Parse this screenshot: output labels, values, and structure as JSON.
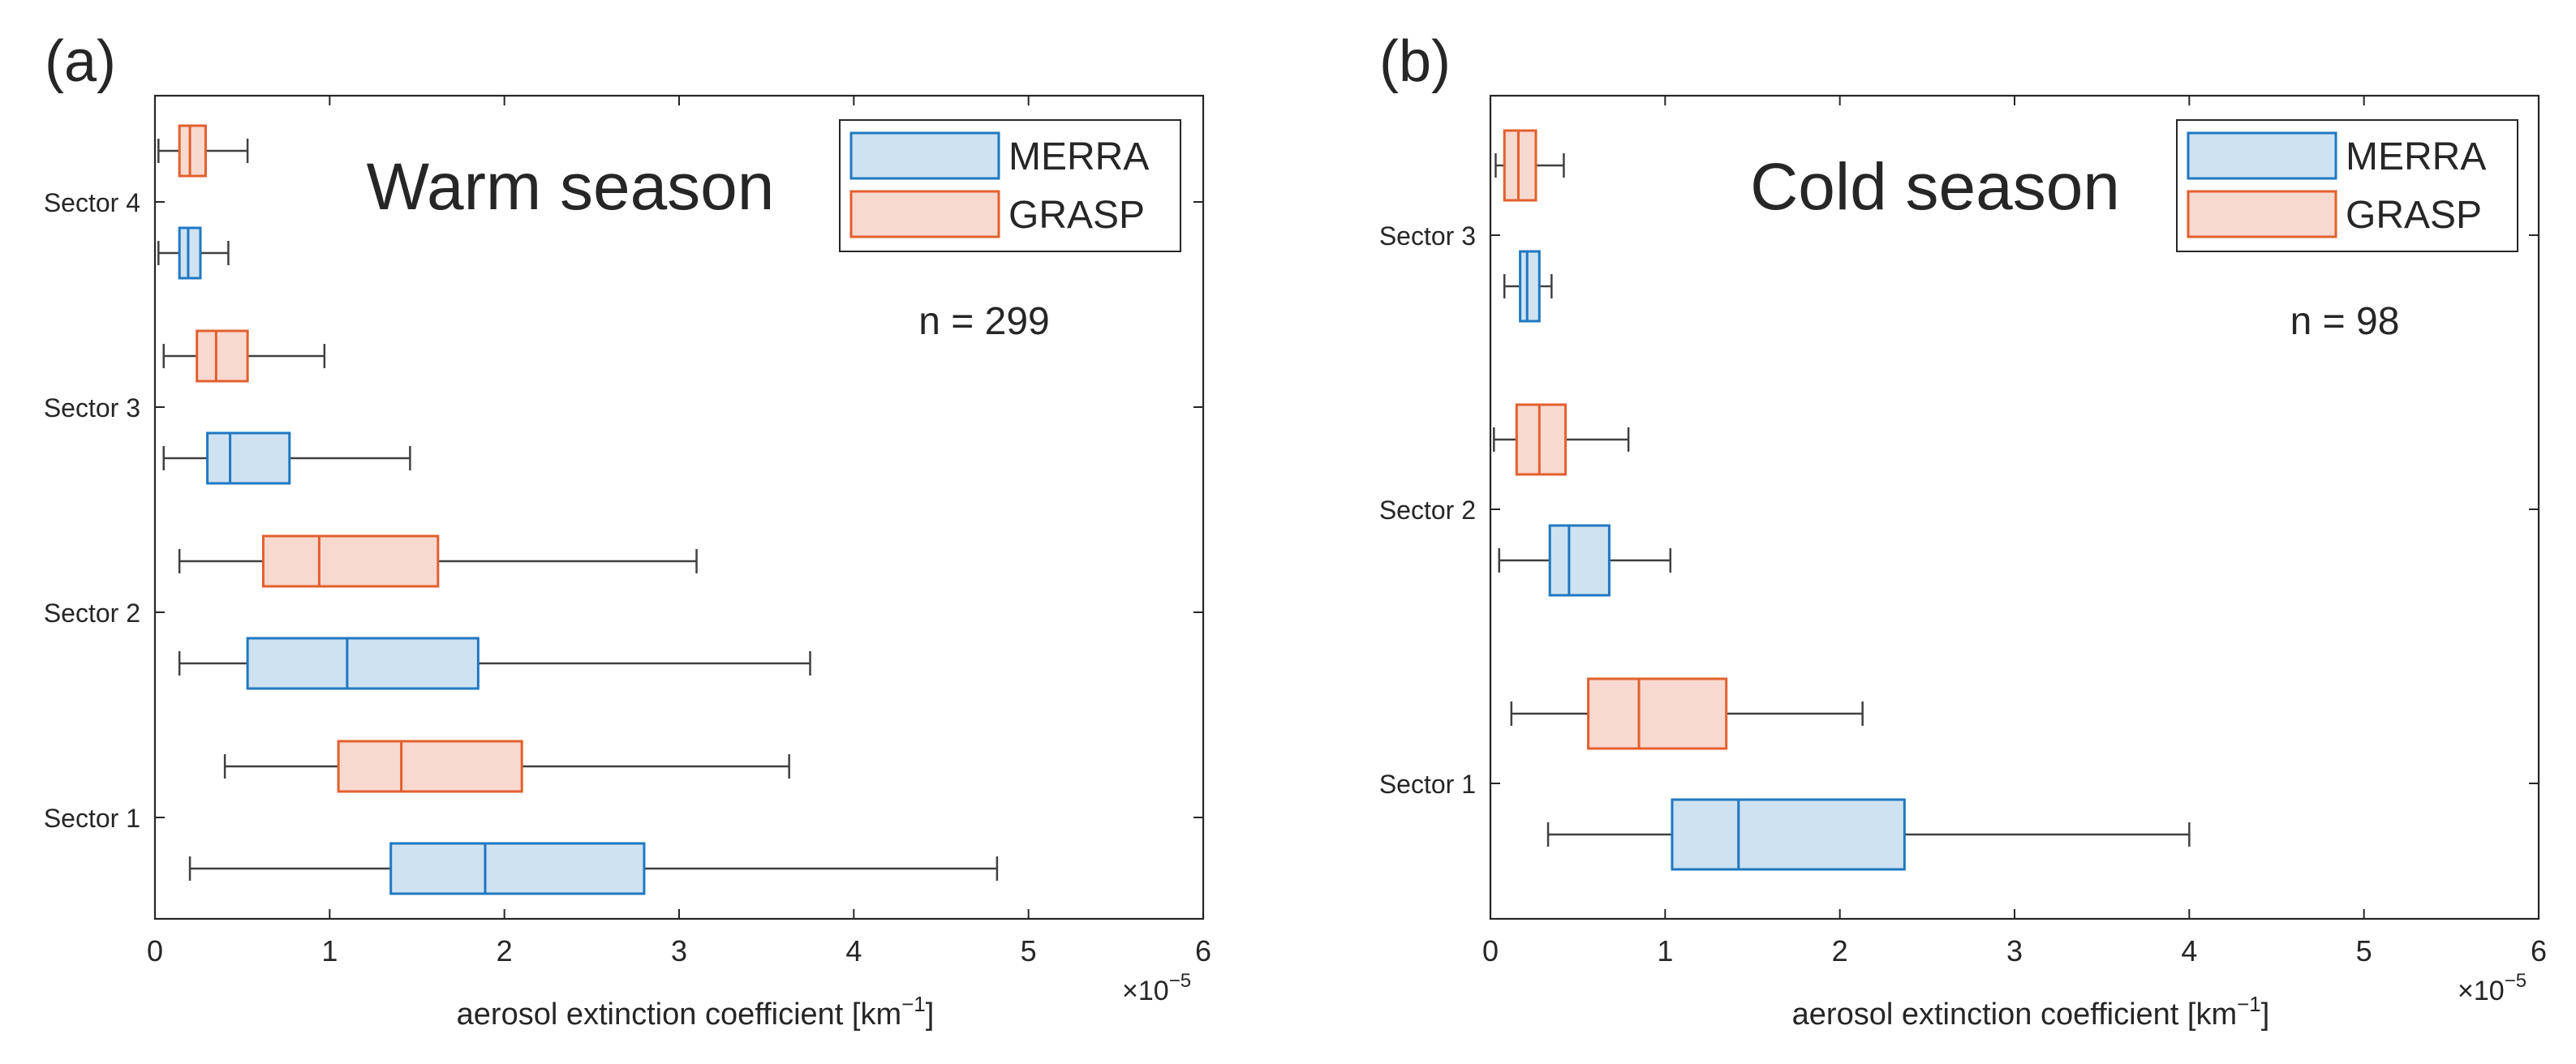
{
  "figure": {
    "panels": [
      {
        "letter": "(a)",
        "title": "Warm season",
        "n_label": "n = 299",
        "xlabel_main": "aerosol extinction coefficient [km",
        "xlabel_sup": "−1",
        "xlabel_tail": "]",
        "exponent_base": "×10",
        "exponent_power": "−5",
        "legend": [
          "MERRA",
          "GRASP"
        ]
      },
      {
        "letter": "(b)",
        "title": "Cold season",
        "n_label": "n = 98",
        "xlabel_main": "aerosol extinction coefficient [km",
        "xlabel_sup": "−1",
        "xlabel_tail": "]",
        "exponent_base": "×10",
        "exponent_power": "−5",
        "legend": [
          "MERRA",
          "GRASP"
        ]
      }
    ]
  },
  "colors": {
    "merra_edge": "#1f78c2",
    "merra_fill": "#cfe2f1",
    "grasp_edge": "#e35f2e",
    "grasp_fill": "#f8d9cf",
    "whisker": "#404040",
    "axis": "#262626"
  },
  "chart_data": [
    {
      "type": "boxplot",
      "orientation": "horizontal",
      "title": "Warm season",
      "panel_label": "(a)",
      "annotation": "n = 299",
      "xlabel": "aerosol extinction coefficient [km−1]",
      "x_exponent": "×10−5",
      "xlim": [
        0,
        6
      ],
      "xticks": [
        0,
        1,
        2,
        3,
        4,
        5,
        6
      ],
      "categories": [
        "Sector 1",
        "Sector 2",
        "Sector 3",
        "Sector 4"
      ],
      "legend_placement": "top-right",
      "series": [
        {
          "name": "MERRA",
          "boxes": [
            {
              "category": "Sector 1",
              "whisker_low": 0.2,
              "q1": 1.35,
              "median": 1.89,
              "q3": 2.8,
              "whisker_high": 4.82
            },
            {
              "category": "Sector 2",
              "whisker_low": 0.14,
              "q1": 0.53,
              "median": 1.1,
              "q3": 1.85,
              "whisker_high": 3.75
            },
            {
              "category": "Sector 3",
              "whisker_low": 0.05,
              "q1": 0.3,
              "median": 0.43,
              "q3": 0.77,
              "whisker_high": 1.46
            },
            {
              "category": "Sector 4",
              "whisker_low": 0.02,
              "q1": 0.14,
              "median": 0.19,
              "q3": 0.26,
              "whisker_high": 0.42
            }
          ]
        },
        {
          "name": "GRASP",
          "boxes": [
            {
              "category": "Sector 1",
              "whisker_low": 0.4,
              "q1": 1.05,
              "median": 1.41,
              "q3": 2.1,
              "whisker_high": 3.63
            },
            {
              "category": "Sector 2",
              "whisker_low": 0.14,
              "q1": 0.62,
              "median": 0.94,
              "q3": 1.62,
              "whisker_high": 3.1
            },
            {
              "category": "Sector 3",
              "whisker_low": 0.05,
              "q1": 0.24,
              "median": 0.35,
              "q3": 0.53,
              "whisker_high": 0.97
            },
            {
              "category": "Sector 4",
              "whisker_low": 0.02,
              "q1": 0.14,
              "median": 0.2,
              "q3": 0.29,
              "whisker_high": 0.53
            }
          ]
        }
      ]
    },
    {
      "type": "boxplot",
      "orientation": "horizontal",
      "title": "Cold season",
      "panel_label": "(b)",
      "annotation": "n = 98",
      "xlabel": "aerosol extinction coefficient [km−1]",
      "x_exponent": "×10−5",
      "xlim": [
        0,
        6
      ],
      "xticks": [
        0,
        1,
        2,
        3,
        4,
        5,
        6
      ],
      "categories": [
        "Sector 1",
        "Sector 2",
        "Sector 3"
      ],
      "legend_placement": "top-right",
      "series": [
        {
          "name": "MERRA",
          "boxes": [
            {
              "category": "Sector 1",
              "whisker_low": 0.33,
              "q1": 1.04,
              "median": 1.42,
              "q3": 2.37,
              "whisker_high": 4.0
            },
            {
              "category": "Sector 2",
              "whisker_low": 0.05,
              "q1": 0.34,
              "median": 0.45,
              "q3": 0.68,
              "whisker_high": 1.03
            },
            {
              "category": "Sector 3",
              "whisker_low": 0.08,
              "q1": 0.17,
              "median": 0.21,
              "q3": 0.28,
              "whisker_high": 0.35
            }
          ]
        },
        {
          "name": "GRASP",
          "boxes": [
            {
              "category": "Sector 1",
              "whisker_low": 0.12,
              "q1": 0.56,
              "median": 0.85,
              "q3": 1.35,
              "whisker_high": 2.13
            },
            {
              "category": "Sector 2",
              "whisker_low": 0.02,
              "q1": 0.15,
              "median": 0.28,
              "q3": 0.43,
              "whisker_high": 0.79
            },
            {
              "category": "Sector 3",
              "whisker_low": 0.03,
              "q1": 0.08,
              "median": 0.16,
              "q3": 0.26,
              "whisker_high": 0.42
            }
          ]
        }
      ]
    }
  ]
}
